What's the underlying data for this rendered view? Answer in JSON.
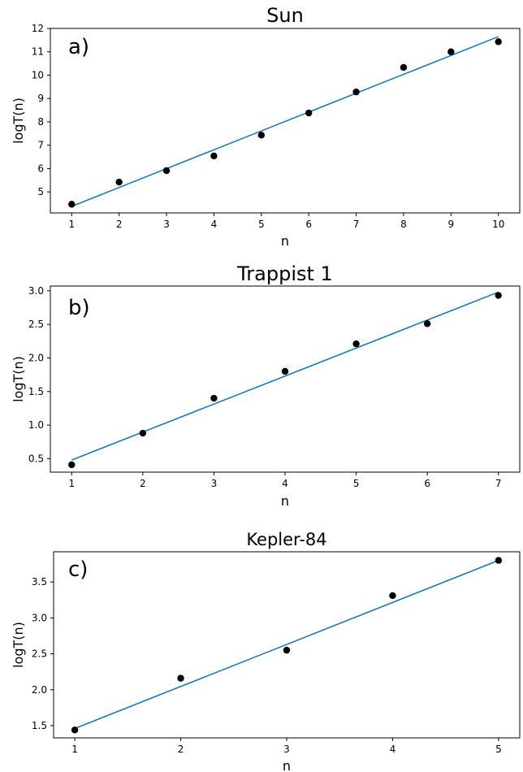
{
  "chart_data": [
    {
      "type": "scatter",
      "title": "Sun",
      "panel_label": "a)",
      "xlabel": "n",
      "ylabel": "logT(n)",
      "xlim": [
        0.55,
        10.45
      ],
      "ylim": [
        4.1,
        12.0
      ],
      "xticks": [
        1,
        2,
        3,
        4,
        5,
        6,
        7,
        8,
        9,
        10
      ],
      "xtick_labels": [
        "1",
        "2",
        "3",
        "4",
        "5",
        "6",
        "7",
        "8",
        "9",
        "10"
      ],
      "yticks": [
        5,
        6,
        7,
        8,
        9,
        10,
        11,
        12
      ],
      "ytick_labels": [
        "5",
        "6",
        "7",
        "8",
        "9",
        "10",
        "11",
        "12"
      ],
      "grid": false,
      "series": [
        {
          "kind": "points",
          "color": "#000000",
          "x": [
            1,
            2,
            3,
            4,
            5,
            6,
            7,
            8,
            9,
            10
          ],
          "y": [
            4.47,
            5.42,
            5.91,
            6.54,
            7.43,
            8.38,
            9.28,
            10.33,
            11.0,
            11.43
          ]
        },
        {
          "kind": "fit-line",
          "color": "#1f77b4",
          "x": [
            1,
            10
          ],
          "y": [
            4.38,
            11.65
          ]
        }
      ]
    },
    {
      "type": "scatter",
      "title": "Trappist 1",
      "panel_label": "b)",
      "xlabel": "n",
      "ylabel": "logT(n)",
      "xlim": [
        0.7,
        7.3
      ],
      "ylim": [
        0.3,
        3.07
      ],
      "xticks": [
        1,
        2,
        3,
        4,
        5,
        6,
        7
      ],
      "xtick_labels": [
        "1",
        "2",
        "3",
        "4",
        "5",
        "6",
        "7"
      ],
      "yticks": [
        0.5,
        1.0,
        1.5,
        2.0,
        2.5,
        3.0
      ],
      "ytick_labels": [
        "0.5",
        "1.0",
        "1.5",
        "2.0",
        "2.5",
        "3.0"
      ],
      "grid": false,
      "series": [
        {
          "kind": "points",
          "color": "#000000",
          "x": [
            1,
            2,
            3,
            4,
            5,
            6,
            7
          ],
          "y": [
            0.41,
            0.88,
            1.4,
            1.8,
            2.21,
            2.51,
            2.93
          ]
        },
        {
          "kind": "fit-line",
          "color": "#1f77b4",
          "x": [
            1,
            7
          ],
          "y": [
            0.48,
            2.98
          ]
        }
      ]
    },
    {
      "type": "scatter",
      "title": "Kepler-84",
      "panel_label": "c)",
      "xlabel": "n",
      "ylabel": "logT(n)",
      "xlim": [
        0.8,
        5.2
      ],
      "ylim": [
        1.33,
        3.92
      ],
      "xticks": [
        1,
        2,
        3,
        4,
        5
      ],
      "xtick_labels": [
        "1",
        "2",
        "3",
        "4",
        "5"
      ],
      "yticks": [
        1.5,
        2.0,
        2.5,
        3.0,
        3.5
      ],
      "ytick_labels": [
        "1.5",
        "2.0",
        "2.5",
        "3.0",
        "3.5"
      ],
      "grid": false,
      "series": [
        {
          "kind": "points",
          "color": "#000000",
          "x": [
            1,
            2,
            3,
            4,
            5
          ],
          "y": [
            1.44,
            2.16,
            2.55,
            3.31,
            3.8
          ]
        },
        {
          "kind": "fit-line",
          "color": "#1f77b4",
          "x": [
            1,
            5
          ],
          "y": [
            1.46,
            3.8
          ]
        }
      ]
    }
  ]
}
